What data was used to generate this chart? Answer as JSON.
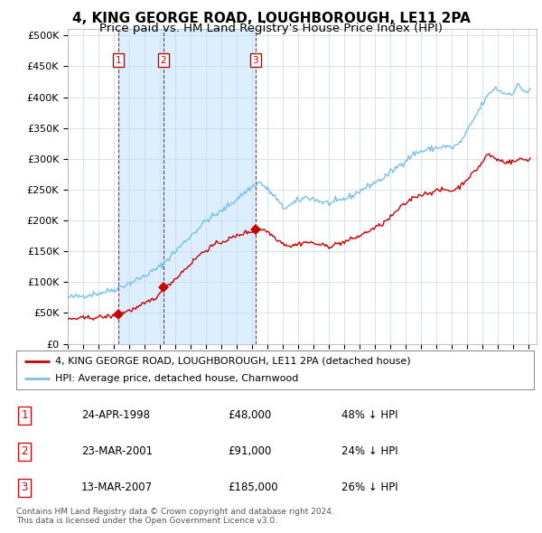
{
  "title": "4, KING GEORGE ROAD, LOUGHBOROUGH, LE11 2PA",
  "subtitle": "Price paid vs. HM Land Registry's House Price Index (HPI)",
  "title_fontsize": 11,
  "subtitle_fontsize": 9.5,
  "ylabel_ticks": [
    "£0",
    "£50K",
    "£100K",
    "£150K",
    "£200K",
    "£250K",
    "£300K",
    "£350K",
    "£400K",
    "£450K",
    "£500K"
  ],
  "ytick_values": [
    0,
    50000,
    100000,
    150000,
    200000,
    250000,
    300000,
    350000,
    400000,
    450000,
    500000
  ],
  "ylim": [
    0,
    510000
  ],
  "xlim_start": 1995.0,
  "xlim_end": 2025.5,
  "hpi_color": "#7bbfea",
  "price_color": "#cc0000",
  "dashed_line_color": "#cc0000",
  "marker_color": "#cc0000",
  "sale_dates": [
    1998.31,
    2001.23,
    2007.2
  ],
  "sale_prices": [
    48000,
    91000,
    185000
  ],
  "sale_labels": [
    "1",
    "2",
    "3"
  ],
  "band_color": "#ddeeff",
  "legend_label_price": "4, KING GEORGE ROAD, LOUGHBOROUGH, LE11 2PA (detached house)",
  "legend_label_hpi": "HPI: Average price, detached house, Charnwood",
  "table_data": [
    [
      "1",
      "24-APR-1998",
      "£48,000",
      "48% ↓ HPI"
    ],
    [
      "2",
      "23-MAR-2001",
      "£91,000",
      "24% ↓ HPI"
    ],
    [
      "3",
      "13-MAR-2007",
      "£185,000",
      "26% ↓ HPI"
    ]
  ],
  "footnote": "Contains HM Land Registry data © Crown copyright and database right 2024.\nThis data is licensed under the Open Government Licence v3.0.",
  "background_color": "#ffffff",
  "grid_color": "#c8d8e8"
}
